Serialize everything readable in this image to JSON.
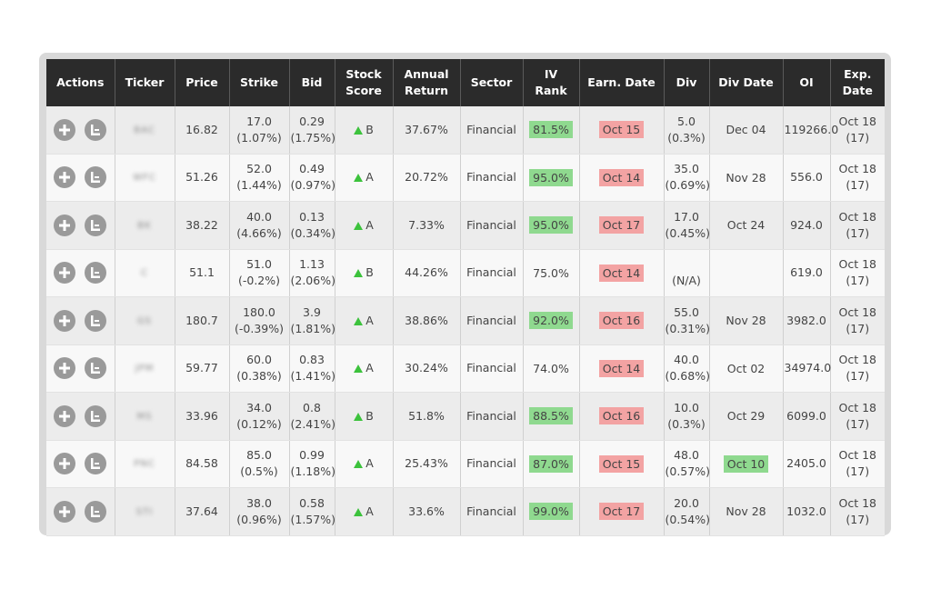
{
  "headers": {
    "actions": "Actions",
    "ticker": "Ticker",
    "price": "Price",
    "strike": "Strike",
    "bid": "Bid",
    "stock_score_1": "Stock",
    "stock_score_2": "Score",
    "annual_return_1": "Annual",
    "annual_return_2": "Return",
    "sector": "Sector",
    "iv_rank_1": "IV",
    "iv_rank_2": "Rank",
    "earn_date": "Earn. Date",
    "div": "Div",
    "div_date": "Div Date",
    "oi": "OI",
    "exp_date_1": "Exp.",
    "exp_date_2": "Date"
  },
  "icons": {
    "add": "plus-circle-icon",
    "chart": "chart-circle-icon",
    "score_arrow": "triangle-up-icon"
  },
  "colors": {
    "header_bg": "#2b2b2b",
    "good_highlight": "#8fd98f",
    "bad_highlight": "#f3a3a3",
    "score_arrow": "#3cc23c"
  },
  "rows": [
    {
      "ticker": "BAC",
      "price": "16.82",
      "strike": "17.0",
      "strike_pct": "(1.07%)",
      "bid": "0.29",
      "bid_pct": "(1.75%)",
      "score": "B",
      "annual_return": "37.67%",
      "sector": "Financial",
      "iv_rank": "81.5%",
      "iv_hl": "green",
      "earn_date": "Oct 15",
      "earn_hl": "red",
      "div": "5.0",
      "div_pct": "(0.3%)",
      "div_date": "Dec 04",
      "div_date_hl": "",
      "oi": "119266.0",
      "exp_date": "Oct 18",
      "exp_days": "(17)"
    },
    {
      "ticker": "WFC",
      "price": "51.26",
      "strike": "52.0",
      "strike_pct": "(1.44%)",
      "bid": "0.49",
      "bid_pct": "(0.97%)",
      "score": "A",
      "annual_return": "20.72%",
      "sector": "Financial",
      "iv_rank": "95.0%",
      "iv_hl": "green",
      "earn_date": "Oct 14",
      "earn_hl": "red",
      "div": "35.0",
      "div_pct": "(0.69%)",
      "div_date": "Nov 28",
      "div_date_hl": "",
      "oi": "556.0",
      "exp_date": "Oct 18",
      "exp_days": "(17)"
    },
    {
      "ticker": "BK",
      "price": "38.22",
      "strike": "40.0",
      "strike_pct": "(4.66%)",
      "bid": "0.13",
      "bid_pct": "(0.34%)",
      "score": "A",
      "annual_return": "7.33%",
      "sector": "Financial",
      "iv_rank": "95.0%",
      "iv_hl": "green",
      "earn_date": "Oct 17",
      "earn_hl": "red",
      "div": "17.0",
      "div_pct": "(0.45%)",
      "div_date": "Oct 24",
      "div_date_hl": "",
      "oi": "924.0",
      "exp_date": "Oct 18",
      "exp_days": "(17)"
    },
    {
      "ticker": "C",
      "price": "51.1",
      "strike": "51.0",
      "strike_pct": "(-0.2%)",
      "bid": "1.13",
      "bid_pct": "(2.06%)",
      "score": "B",
      "annual_return": "44.26%",
      "sector": "Financial",
      "iv_rank": "75.0%",
      "iv_hl": "",
      "earn_date": "Oct 14",
      "earn_hl": "red",
      "div": "",
      "div_pct": "(N/A)",
      "div_date": "",
      "div_date_hl": "",
      "oi": "619.0",
      "exp_date": "Oct 18",
      "exp_days": "(17)"
    },
    {
      "ticker": "GS",
      "price": "180.7",
      "strike": "180.0",
      "strike_pct": "(-0.39%)",
      "bid": "3.9",
      "bid_pct": "(1.81%)",
      "score": "A",
      "annual_return": "38.86%",
      "sector": "Financial",
      "iv_rank": "92.0%",
      "iv_hl": "green",
      "earn_date": "Oct 16",
      "earn_hl": "red",
      "div": "55.0",
      "div_pct": "(0.31%)",
      "div_date": "Nov 28",
      "div_date_hl": "",
      "oi": "3982.0",
      "exp_date": "Oct 18",
      "exp_days": "(17)"
    },
    {
      "ticker": "JPM",
      "price": "59.77",
      "strike": "60.0",
      "strike_pct": "(0.38%)",
      "bid": "0.83",
      "bid_pct": "(1.41%)",
      "score": "A",
      "annual_return": "30.24%",
      "sector": "Financial",
      "iv_rank": "74.0%",
      "iv_hl": "",
      "earn_date": "Oct 14",
      "earn_hl": "red",
      "div": "40.0",
      "div_pct": "(0.68%)",
      "div_date": "Oct 02",
      "div_date_hl": "",
      "oi": "34974.0",
      "exp_date": "Oct 18",
      "exp_days": "(17)"
    },
    {
      "ticker": "MS",
      "price": "33.96",
      "strike": "34.0",
      "strike_pct": "(0.12%)",
      "bid": "0.8",
      "bid_pct": "(2.41%)",
      "score": "B",
      "annual_return": "51.8%",
      "sector": "Financial",
      "iv_rank": "88.5%",
      "iv_hl": "green",
      "earn_date": "Oct 16",
      "earn_hl": "red",
      "div": "10.0",
      "div_pct": "(0.3%)",
      "div_date": "Oct 29",
      "div_date_hl": "",
      "oi": "6099.0",
      "exp_date": "Oct 18",
      "exp_days": "(17)"
    },
    {
      "ticker": "PNC",
      "price": "84.58",
      "strike": "85.0",
      "strike_pct": "(0.5%)",
      "bid": "0.99",
      "bid_pct": "(1.18%)",
      "score": "A",
      "annual_return": "25.43%",
      "sector": "Financial",
      "iv_rank": "87.0%",
      "iv_hl": "green",
      "earn_date": "Oct 15",
      "earn_hl": "red",
      "div": "48.0",
      "div_pct": "(0.57%)",
      "div_date": "Oct 10",
      "div_date_hl": "green",
      "oi": "2405.0",
      "exp_date": "Oct 18",
      "exp_days": "(17)"
    },
    {
      "ticker": "STI",
      "price": "37.64",
      "strike": "38.0",
      "strike_pct": "(0.96%)",
      "bid": "0.58",
      "bid_pct": "(1.57%)",
      "score": "A",
      "annual_return": "33.6%",
      "sector": "Financial",
      "iv_rank": "99.0%",
      "iv_hl": "green",
      "earn_date": "Oct 17",
      "earn_hl": "red",
      "div": "20.0",
      "div_pct": "(0.54%)",
      "div_date": "Nov 28",
      "div_date_hl": "",
      "oi": "1032.0",
      "exp_date": "Oct 18",
      "exp_days": "(17)"
    }
  ]
}
